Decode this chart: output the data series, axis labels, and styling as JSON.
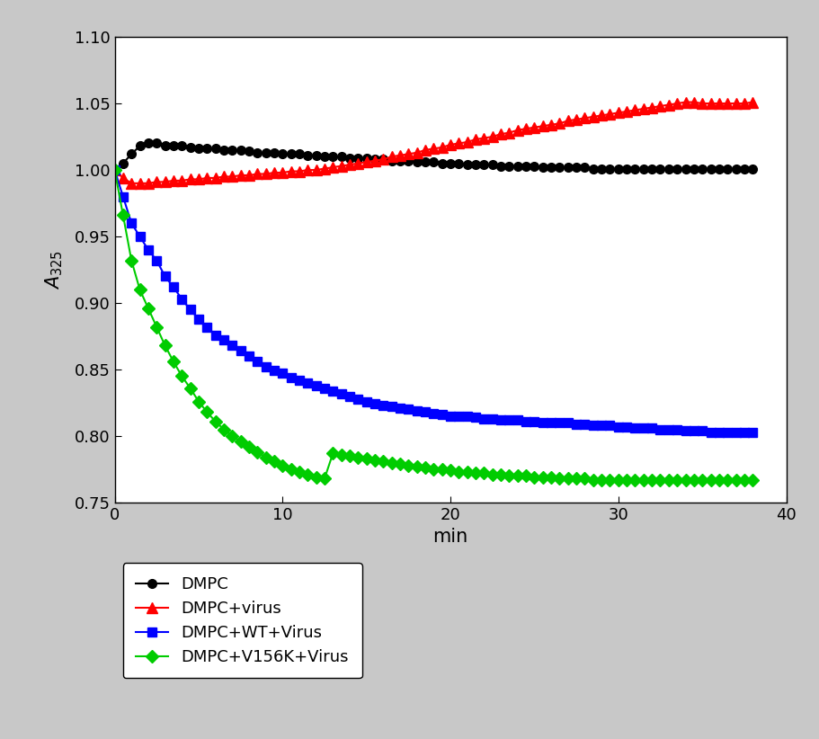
{
  "title": "",
  "xlabel": "min",
  "ylabel": "A_{325}",
  "xlim": [
    0,
    40
  ],
  "ylim": [
    0.75,
    1.1
  ],
  "yticks": [
    0.75,
    0.8,
    0.85,
    0.9,
    0.95,
    1.0,
    1.05,
    1.1
  ],
  "xticks": [
    0,
    10,
    20,
    30,
    40
  ],
  "outer_bg": "#d8d8d8",
  "plot_bg": "#ffffff",
  "series": [
    {
      "label": "DMPC",
      "color": "#000000",
      "marker": "o",
      "markersize": 7,
      "linewidth": 1.5,
      "x": [
        0,
        0.5,
        1.0,
        1.5,
        2.0,
        2.5,
        3.0,
        3.5,
        4.0,
        4.5,
        5.0,
        5.5,
        6.0,
        6.5,
        7.0,
        7.5,
        8.0,
        8.5,
        9.0,
        9.5,
        10.0,
        10.5,
        11.0,
        11.5,
        12.0,
        12.5,
        13.0,
        13.5,
        14.0,
        14.5,
        15.0,
        15.5,
        16.0,
        16.5,
        17.0,
        17.5,
        18.0,
        18.5,
        19.0,
        19.5,
        20.0,
        20.5,
        21.0,
        21.5,
        22.0,
        22.5,
        23.0,
        23.5,
        24.0,
        24.5,
        25.0,
        25.5,
        26.0,
        26.5,
        27.0,
        27.5,
        28.0,
        28.5,
        29.0,
        29.5,
        30.0,
        30.5,
        31.0,
        31.5,
        32.0,
        32.5,
        33.0,
        33.5,
        34.0,
        34.5,
        35.0,
        35.5,
        36.0,
        36.5,
        37.0,
        37.5,
        38.0
      ],
      "y": [
        1.0,
        1.005,
        1.012,
        1.018,
        1.02,
        1.02,
        1.018,
        1.018,
        1.018,
        1.017,
        1.016,
        1.016,
        1.016,
        1.015,
        1.015,
        1.015,
        1.014,
        1.013,
        1.013,
        1.013,
        1.012,
        1.012,
        1.012,
        1.011,
        1.011,
        1.01,
        1.01,
        1.01,
        1.009,
        1.009,
        1.009,
        1.008,
        1.008,
        1.007,
        1.007,
        1.007,
        1.006,
        1.006,
        1.006,
        1.005,
        1.005,
        1.005,
        1.004,
        1.004,
        1.004,
        1.004,
        1.003,
        1.003,
        1.003,
        1.003,
        1.003,
        1.002,
        1.002,
        1.002,
        1.002,
        1.002,
        1.002,
        1.001,
        1.001,
        1.001,
        1.001,
        1.001,
        1.001,
        1.001,
        1.001,
        1.001,
        1.001,
        1.001,
        1.001,
        1.001,
        1.001,
        1.001,
        1.001,
        1.001,
        1.001,
        1.001,
        1.001
      ]
    },
    {
      "label": "DMPC+virus",
      "color": "#ff0000",
      "marker": "^",
      "markersize": 8,
      "linewidth": 1.5,
      "x": [
        0,
        0.5,
        1.0,
        1.5,
        2.0,
        2.5,
        3.0,
        3.5,
        4.0,
        4.5,
        5.0,
        5.5,
        6.0,
        6.5,
        7.0,
        7.5,
        8.0,
        8.5,
        9.0,
        9.5,
        10.0,
        10.5,
        11.0,
        11.5,
        12.0,
        12.5,
        13.0,
        13.5,
        14.0,
        14.5,
        15.0,
        15.5,
        16.0,
        16.5,
        17.0,
        17.5,
        18.0,
        18.5,
        19.0,
        19.5,
        20.0,
        20.5,
        21.0,
        21.5,
        22.0,
        22.5,
        23.0,
        23.5,
        24.0,
        24.5,
        25.0,
        25.5,
        26.0,
        26.5,
        27.0,
        27.5,
        28.0,
        28.5,
        29.0,
        29.5,
        30.0,
        30.5,
        31.0,
        31.5,
        32.0,
        32.5,
        33.0,
        33.5,
        34.0,
        34.5,
        35.0,
        35.5,
        36.0,
        36.5,
        37.0,
        37.5,
        38.0
      ],
      "y": [
        1.0,
        0.994,
        0.99,
        0.99,
        0.99,
        0.991,
        0.991,
        0.992,
        0.992,
        0.993,
        0.993,
        0.994,
        0.994,
        0.995,
        0.995,
        0.996,
        0.996,
        0.997,
        0.997,
        0.998,
        0.998,
        0.999,
        0.999,
        1.0,
        1.0,
        1.001,
        1.002,
        1.003,
        1.004,
        1.005,
        1.006,
        1.007,
        1.008,
        1.01,
        1.011,
        1.012,
        1.013,
        1.015,
        1.016,
        1.017,
        1.019,
        1.02,
        1.021,
        1.023,
        1.024,
        1.025,
        1.027,
        1.028,
        1.03,
        1.031,
        1.032,
        1.033,
        1.034,
        1.035,
        1.037,
        1.038,
        1.039,
        1.04,
        1.041,
        1.042,
        1.043,
        1.044,
        1.045,
        1.046,
        1.047,
        1.048,
        1.049,
        1.05,
        1.051,
        1.051,
        1.05,
        1.05,
        1.05,
        1.05,
        1.05,
        1.05,
        1.051
      ]
    },
    {
      "label": "DMPC+WT+Virus",
      "color": "#0000ff",
      "marker": "s",
      "markersize": 7,
      "linewidth": 1.5,
      "x": [
        0,
        0.5,
        1.0,
        1.5,
        2.0,
        2.5,
        3.0,
        3.5,
        4.0,
        4.5,
        5.0,
        5.5,
        6.0,
        6.5,
        7.0,
        7.5,
        8.0,
        8.5,
        9.0,
        9.5,
        10.0,
        10.5,
        11.0,
        11.5,
        12.0,
        12.5,
        13.0,
        13.5,
        14.0,
        14.5,
        15.0,
        15.5,
        16.0,
        16.5,
        17.0,
        17.5,
        18.0,
        18.5,
        19.0,
        19.5,
        20.0,
        20.5,
        21.0,
        21.5,
        22.0,
        22.5,
        23.0,
        23.5,
        24.0,
        24.5,
        25.0,
        25.5,
        26.0,
        26.5,
        27.0,
        27.5,
        28.0,
        28.5,
        29.0,
        29.5,
        30.0,
        30.5,
        31.0,
        31.5,
        32.0,
        32.5,
        33.0,
        33.5,
        34.0,
        34.5,
        35.0,
        35.5,
        36.0,
        36.5,
        37.0,
        37.5,
        38.0
      ],
      "y": [
        1.0,
        0.98,
        0.96,
        0.95,
        0.94,
        0.932,
        0.92,
        0.912,
        0.903,
        0.895,
        0.888,
        0.882,
        0.876,
        0.872,
        0.868,
        0.864,
        0.86,
        0.856,
        0.852,
        0.849,
        0.847,
        0.844,
        0.842,
        0.84,
        0.838,
        0.836,
        0.834,
        0.832,
        0.83,
        0.828,
        0.826,
        0.824,
        0.823,
        0.822,
        0.821,
        0.82,
        0.819,
        0.818,
        0.817,
        0.816,
        0.815,
        0.815,
        0.815,
        0.814,
        0.813,
        0.813,
        0.812,
        0.812,
        0.812,
        0.811,
        0.811,
        0.81,
        0.81,
        0.81,
        0.81,
        0.809,
        0.809,
        0.808,
        0.808,
        0.808,
        0.807,
        0.807,
        0.806,
        0.806,
        0.806,
        0.805,
        0.805,
        0.805,
        0.804,
        0.804,
        0.804,
        0.803,
        0.803,
        0.803,
        0.803,
        0.803,
        0.803
      ]
    },
    {
      "label": "DMPC+V156K+Virus",
      "color": "#00cc00",
      "marker": "D",
      "markersize": 7,
      "linewidth": 1.5,
      "x": [
        0,
        0.5,
        1.0,
        1.5,
        2.0,
        2.5,
        3.0,
        3.5,
        4.0,
        4.5,
        5.0,
        5.5,
        6.0,
        6.5,
        7.0,
        7.5,
        8.0,
        8.5,
        9.0,
        9.5,
        10.0,
        10.5,
        11.0,
        11.5,
        12.0,
        12.5,
        13.0,
        13.5,
        14.0,
        14.5,
        15.0,
        15.5,
        16.0,
        16.5,
        17.0,
        17.5,
        18.0,
        18.5,
        19.0,
        19.5,
        20.0,
        20.5,
        21.0,
        21.5,
        22.0,
        22.5,
        23.0,
        23.5,
        24.0,
        24.5,
        25.0,
        25.5,
        26.0,
        26.5,
        27.0,
        27.5,
        28.0,
        28.5,
        29.0,
        29.5,
        30.0,
        30.5,
        31.0,
        31.5,
        32.0,
        32.5,
        33.0,
        33.5,
        34.0,
        34.5,
        35.0,
        35.5,
        36.0,
        36.5,
        37.0,
        37.5,
        38.0
      ],
      "y": [
        1.0,
        0.966,
        0.932,
        0.91,
        0.896,
        0.882,
        0.868,
        0.856,
        0.845,
        0.836,
        0.826,
        0.818,
        0.811,
        0.805,
        0.8,
        0.796,
        0.792,
        0.788,
        0.784,
        0.781,
        0.778,
        0.775,
        0.773,
        0.771,
        0.769,
        0.768,
        0.787,
        0.786,
        0.785,
        0.784,
        0.783,
        0.782,
        0.781,
        0.78,
        0.779,
        0.778,
        0.777,
        0.776,
        0.775,
        0.775,
        0.774,
        0.773,
        0.773,
        0.772,
        0.772,
        0.771,
        0.771,
        0.77,
        0.77,
        0.77,
        0.769,
        0.769,
        0.769,
        0.768,
        0.768,
        0.768,
        0.768,
        0.767,
        0.767,
        0.767,
        0.767,
        0.767,
        0.767,
        0.767,
        0.767,
        0.767,
        0.767,
        0.767,
        0.767,
        0.767,
        0.767,
        0.767,
        0.767,
        0.767,
        0.767,
        0.767,
        0.767
      ]
    }
  ]
}
